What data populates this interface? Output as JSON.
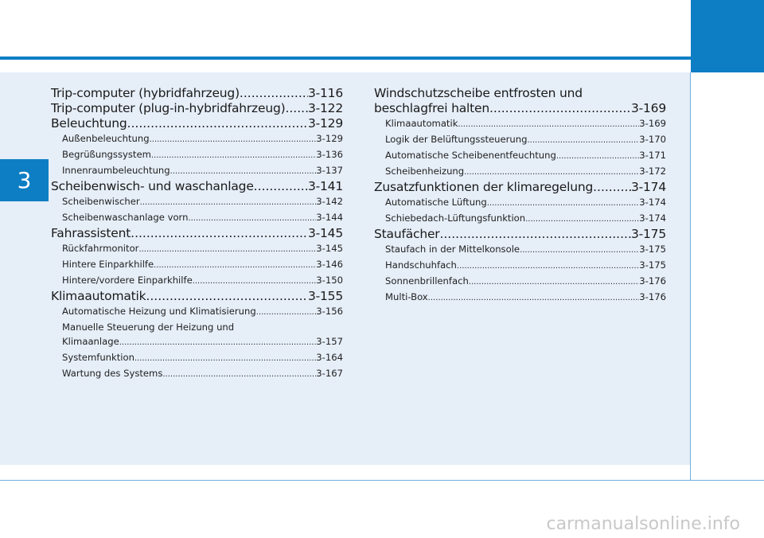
{
  "chapter": "3",
  "col1": [
    {
      "title": "Trip-computer (hybridfahrzeug) ",
      "page": "3-116",
      "level": "main"
    },
    {
      "title": "Trip-computer (plug-in-hybridfahrzeug) ",
      "page": "3-122",
      "level": "main"
    },
    {
      "title": "Beleuchtung ",
      "page": "3-129",
      "level": "main"
    },
    {
      "title": "Außenbeleuchtung",
      "page": "3-129",
      "level": "sub"
    },
    {
      "title": "Begrüßungssystem ",
      "page": "3-136",
      "level": "sub"
    },
    {
      "title": "Innenraumbeleuchtung ",
      "page": "3-137",
      "level": "sub"
    },
    {
      "title": "Scheibenwisch- und waschanlage ",
      "page": "3-141",
      "level": "main"
    },
    {
      "title": "Scheibenwischer",
      "page": "3-142",
      "level": "sub"
    },
    {
      "title": "Scheibenwaschanlage vorn ",
      "page": "3-144",
      "level": "sub"
    },
    {
      "title": "Fahrassistent ",
      "page": "3-145",
      "level": "main"
    },
    {
      "title": "Rückfahrmonitor ",
      "page": "3-145",
      "level": "sub"
    },
    {
      "title": "Hintere Einparkhilfe ",
      "page": "3-146",
      "level": "sub"
    },
    {
      "title": "Hintere/vordere Einparkhilfe ",
      "page": "3-150",
      "level": "sub"
    },
    {
      "title": "Klimaautomatik ",
      "page": "3-155",
      "level": "main"
    },
    {
      "title": "Automatische Heizung und Klimatisierung ",
      "page": "3-156",
      "level": "sub"
    }
  ],
  "col1_multi": {
    "line1": "Manuelle Steuerung der Heizung und",
    "title": "Klimaanlage",
    "page": "3-157"
  },
  "col1_tail": [
    {
      "title": "Systemfunktion ",
      "page": "3-164",
      "level": "sub"
    },
    {
      "title": "Wartung des Systems ",
      "page": "3-167",
      "level": "sub"
    }
  ],
  "col2_multi": {
    "line1": "Windschutzscheibe entfrosten und",
    "title": "beschlagfrei halten",
    "page": "3-169"
  },
  "col2": [
    {
      "title": "Klimaautomatik ",
      "page": "3-169",
      "level": "sub"
    },
    {
      "title": "Logik der Belüftungssteuerung",
      "page": "3-170",
      "level": "sub"
    },
    {
      "title": "Automatische Scheibenentfeuchtung ",
      "page": "3-171",
      "level": "sub"
    },
    {
      "title": "Scheibenheizung ",
      "page": "3-172",
      "level": "sub"
    },
    {
      "title": "Zusatzfunktionen der klimaregelung ",
      "page": "3-174",
      "level": "main"
    },
    {
      "title": "Automatische Lüftung ",
      "page": "3-174",
      "level": "sub"
    },
    {
      "title": "Schiebedach-Lüftungsfunktion",
      "page": "3-174",
      "level": "sub"
    },
    {
      "title": "Staufächer ",
      "page": "3-175",
      "level": "main"
    },
    {
      "title": "Staufach in der Mittelkonsole ",
      "page": "3-175",
      "level": "sub"
    },
    {
      "title": "Handschuhfach",
      "page": "3-175",
      "level": "sub"
    },
    {
      "title": "Sonnenbrillenfach ",
      "page": "3-176",
      "level": "sub"
    },
    {
      "title": "Multi-Box ",
      "page": "3-176",
      "level": "sub"
    }
  ],
  "watermark": "carmanualsonline.info",
  "colors": {
    "accent": "#0e7ec4",
    "panel": "#e6eef8"
  }
}
